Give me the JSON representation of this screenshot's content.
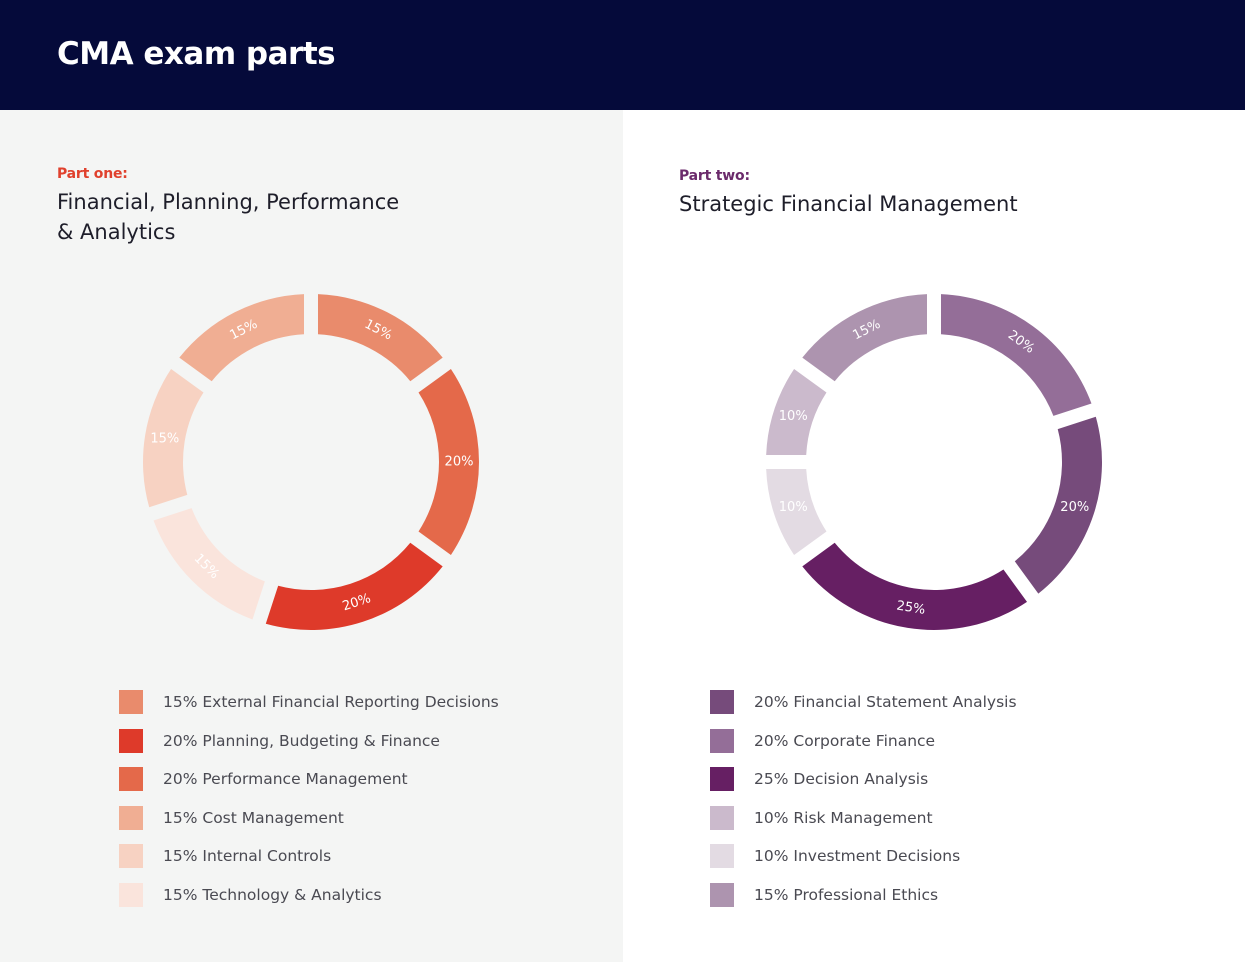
{
  "header": {
    "title": "CMA exam parts",
    "background": "#050a3a"
  },
  "chart_data": [
    {
      "type": "pie",
      "label": "Part one:",
      "label_color": "#e0412d",
      "title_lines": [
        "Financial, Planning, Performance",
        "& Analytics"
      ],
      "slices": [
        {
          "pct_label": "15%",
          "value": 15,
          "name": "External Financial Reporting Decisions",
          "legend": "15% External Financial Reporting Decisions",
          "color": "#e98b6c"
        },
        {
          "pct_label": "20%",
          "value": 20,
          "name": "Performance Management",
          "legend": "20% Performance Management",
          "color": "#e4694a"
        },
        {
          "pct_label": "20%",
          "value": 20,
          "name": "Planning, Budgeting & Finance",
          "legend": "20% Planning, Budgeting & Finance",
          "color": "#de3a2a"
        },
        {
          "pct_label": "15%",
          "value": 15,
          "name": "Technology & Analytics",
          "legend": "15% Technology & Analytics",
          "color": "#fae4dc"
        },
        {
          "pct_label": "15%",
          "value": 15,
          "name": "Internal Controls",
          "legend": "15% Internal Controls",
          "color": "#f7d2c2"
        },
        {
          "pct_label": "15%",
          "value": 15,
          "name": "Cost Management",
          "legend": "15% Cost Management",
          "color": "#f0ae93"
        }
      ],
      "legend_order": [
        0,
        2,
        1,
        5,
        4,
        3
      ]
    },
    {
      "type": "pie",
      "label": "Part two:",
      "label_color": "#6b2a6b",
      "title_lines": [
        "Strategic Financial Management"
      ],
      "slices": [
        {
          "pct_label": "20%",
          "value": 20,
          "name": "Corporate Finance",
          "legend": "20% Corporate Finance",
          "color": "#946e98"
        },
        {
          "pct_label": "20%",
          "value": 20,
          "name": "Financial Statement Analysis",
          "legend": "20% Financial Statement Analysis",
          "color": "#764b7b"
        },
        {
          "pct_label": "25%",
          "value": 25,
          "name": "Decision Analysis",
          "legend": "25% Decision Analysis",
          "color": "#661f63"
        },
        {
          "pct_label": "10%",
          "value": 10,
          "name": "Investment Decisions",
          "legend": "10% Investment Decisions",
          "color": "#e3dbe3"
        },
        {
          "pct_label": "10%",
          "value": 10,
          "name": "Risk Management",
          "legend": "10% Risk Management",
          "color": "#cbbacc"
        },
        {
          "pct_label": "15%",
          "value": 15,
          "name": "Professional Ethics",
          "legend": "15% Professional Ethics",
          "color": "#ad94af"
        }
      ],
      "legend_order": [
        1,
        0,
        2,
        4,
        3,
        5
      ]
    }
  ]
}
